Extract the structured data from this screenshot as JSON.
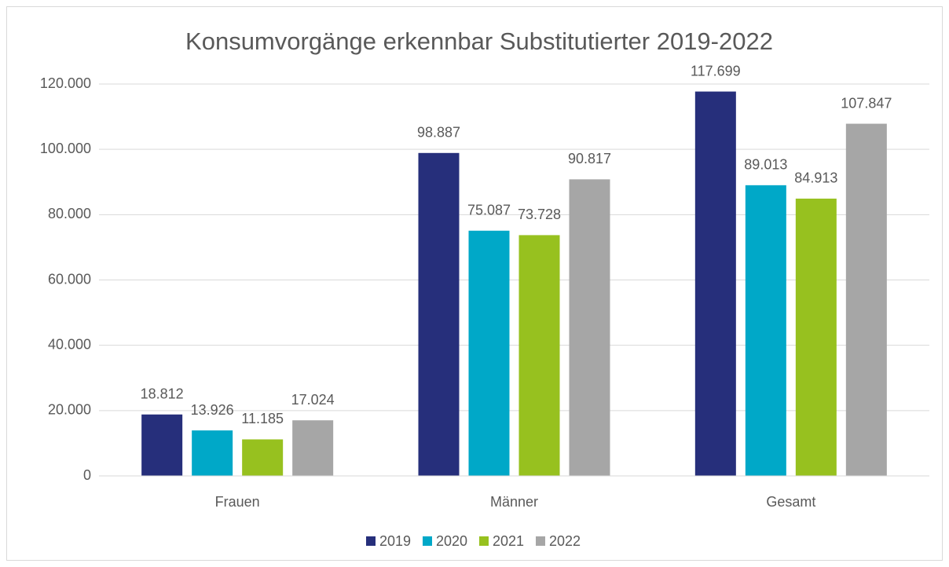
{
  "chart_data": {
    "type": "bar",
    "title": "Konsumvorgänge erkennbar Substitutierter 2019-2022",
    "categories": [
      "Frauen",
      "Männer",
      "Gesamt"
    ],
    "series": [
      {
        "name": "2019",
        "color": "#262f7b",
        "values": [
          18812,
          98887,
          117699
        ],
        "value_labels": [
          "18.812",
          "98.887",
          "117.699"
        ]
      },
      {
        "name": "2020",
        "color": "#00a8c8",
        "values": [
          13926,
          75087,
          89013
        ],
        "value_labels": [
          "13.926",
          "75.087",
          "89.013"
        ]
      },
      {
        "name": "2021",
        "color": "#97c11f",
        "values": [
          11185,
          73728,
          84913
        ],
        "value_labels": [
          "11.185",
          "73.728",
          "84.913"
        ]
      },
      {
        "name": "2022",
        "color": "#a6a6a6",
        "values": [
          17024,
          90817,
          107847
        ],
        "value_labels": [
          "17.024",
          "90.817",
          "107.847"
        ]
      }
    ],
    "ylim": [
      0,
      120000
    ],
    "yticks": [
      0,
      {
        "value": 20000,
        "label": "20.000"
      },
      {
        "value": 40000,
        "label": "40.000"
      },
      {
        "value": 60000,
        "label": "60.000"
      },
      {
        "value": 80000,
        "label": "80.000"
      },
      {
        "value": 100000,
        "label": "100.000"
      },
      {
        "value": 120000,
        "label": "120.000"
      }
    ],
    "grid": true,
    "legend": "bottom"
  }
}
